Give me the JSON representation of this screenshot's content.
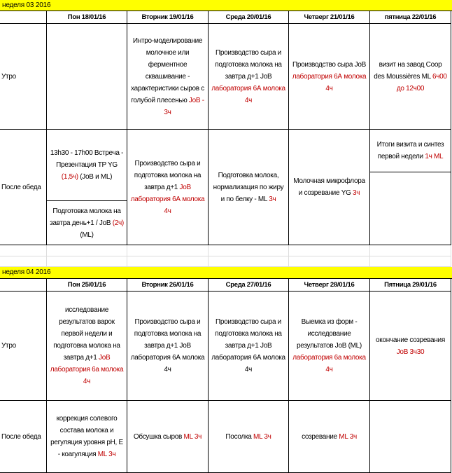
{
  "weeks": [
    {
      "title": "неделя 03 2016",
      "days": [
        "Пон 18/01/16",
        "Вторник 19/01/16",
        "Среда 20/01/16",
        "Четверг 21/01/16",
        "пятница 22/01/16"
      ],
      "rows": [
        {
          "label": "Утро",
          "cells": [
            [],
            [
              {
                "text": "Интро-моделирование молочное или ферментное сквашивание - характеристики сыров с голубой плесенью "
              },
              {
                "text": "JoB - 3ч",
                "color": "#c00000"
              }
            ],
            [
              {
                "text": "Производство сыра и подготовка молока на завтра д+1 JoB "
              },
              {
                "text": "лаборатория 6А молока 4ч",
                "color": "#c00000"
              }
            ],
            [
              {
                "text": "Производство сыра JoB "
              },
              {
                "text": "лаборатория 6А молока 4ч",
                "color": "#c00000"
              }
            ],
            [
              {
                "text": "визит на завод Coop des Moussières ML "
              },
              {
                "text": "6ч00 до 12ч00",
                "color": "#c00000"
              }
            ]
          ]
        },
        {
          "label": "После обеда",
          "cells": [
            {
              "parts": [
                [
                  {
                    "text": "13h30 - 17h00 Встреча - Презентация TP YG "
                  },
                  {
                    "text": "(1,5ч)",
                    "color": "#c00000"
                  },
                  {
                    "text": " (JoB и ML)"
                  }
                ],
                [
                  {
                    "text": "Подготовка молока на завтра день+1 / JoB "
                  },
                  {
                    "text": "(2ч)",
                    "color": "#c00000"
                  },
                  {
                    "text": " (ML)"
                  }
                ]
              ]
            },
            [
              {
                "text": "Производство сыра и подготовка молока на завтра д+1 "
              },
              {
                "text": "JoB лаборатория 6А молока 4ч",
                "color": "#c00000"
              }
            ],
            [
              {
                "text": "Подготовка молока, нормализация по жиру и по белку - ML "
              },
              {
                "text": "3ч",
                "color": "#c00000"
              }
            ],
            [
              {
                "text": "Молочная микрофлора и созревание YG "
              },
              {
                "text": "3ч",
                "color": "#c00000"
              }
            ],
            {
              "parts": [
                [
                  {
                    "text": "Итоги визита и синтез первой недели "
                  },
                  {
                    "text": "1ч ML",
                    "color": "#c00000"
                  }
                ],
                []
              ]
            }
          ]
        }
      ]
    },
    {
      "title": "неделя 04 2016",
      "days": [
        "Пон 25/01/16",
        "Вторник 26/01/16",
        "Среда 27/01/16",
        "Четверг 28/01/16",
        "Пятница 29/01/16"
      ],
      "rows": [
        {
          "label": "Утро",
          "cells": [
            [
              {
                "text": "исследование результатов варок первой недели и подготовка молока на завтра д+1 "
              },
              {
                "text": "JoB лаборатория 6а молока 4ч",
                "color": "#c00000"
              }
            ],
            [
              {
                "text": "Производство сыра и подготовка молока на завтра д+1 JoB лаборатория 6А молока 4ч"
              }
            ],
            [
              {
                "text": "Производство сыра и подготовка молока на завтра д+1 JoB лаборатория 6А молока 4ч"
              }
            ],
            [
              {
                "text": "Выемка из форм - исследование результатов JoB (ML) "
              },
              {
                "text": "лаборатория 6а молока 4ч",
                "color": "#c00000"
              }
            ],
            [
              {
                "text": "окончание созревания "
              },
              {
                "text": "JoB 3ч30",
                "color": "#c00000"
              }
            ]
          ]
        },
        {
          "label": "После обеда",
          "cells": [
            [
              {
                "text": "коррекция солевого состава молока и регуляция уровня pH, E - коагуляция "
              },
              {
                "text": "ML 3ч",
                "color": "#c00000"
              }
            ],
            [
              {
                "text": "Обсушка сыров "
              },
              {
                "text": "ML 3ч",
                "color": "#c00000"
              }
            ],
            [
              {
                "text": "Посолка "
              },
              {
                "text": "ML 3ч",
                "color": "#c00000"
              }
            ],
            [
              {
                "text": "созревание "
              },
              {
                "text": "ML 3ч",
                "color": "#c00000"
              }
            ],
            []
          ]
        }
      ]
    }
  ]
}
